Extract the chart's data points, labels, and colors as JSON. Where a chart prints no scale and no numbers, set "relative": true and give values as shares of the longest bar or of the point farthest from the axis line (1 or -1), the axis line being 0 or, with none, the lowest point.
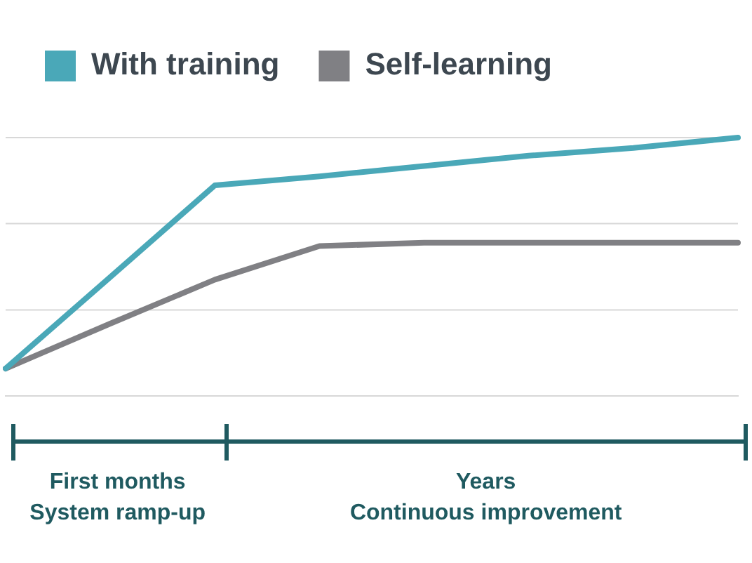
{
  "chart_data": {
    "type": "line",
    "relative": true,
    "categories": [
      null,
      null,
      null,
      null,
      null,
      null,
      null,
      null
    ],
    "series": [
      {
        "name": "With training",
        "color": "#4aa8b8",
        "values": [
          0.106,
          0.46,
          0.815,
          0.85,
          0.89,
          0.93,
          0.96,
          1
        ]
      },
      {
        "name": "Self-learning",
        "color": "#808084",
        "values": [
          0.106,
          0.28,
          0.45,
          0.58,
          0.593,
          0.593,
          0.593,
          0.593
        ]
      }
    ],
    "ref_lines": [
      {
        "axis": "y",
        "value": 1,
        "color": "#d8d8d8"
      },
      {
        "axis": "y",
        "value": 0.667,
        "color": "#d8d8d8"
      },
      {
        "axis": "y",
        "value": 0.333,
        "color": "#d8d8d8"
      }
    ],
    "annotations": [
      "First months\nSystem ramp-up",
      "Years\nContinuous improvement"
    ],
    "legend": "top left",
    "marker": "none",
    "line_style": "solid"
  }
}
